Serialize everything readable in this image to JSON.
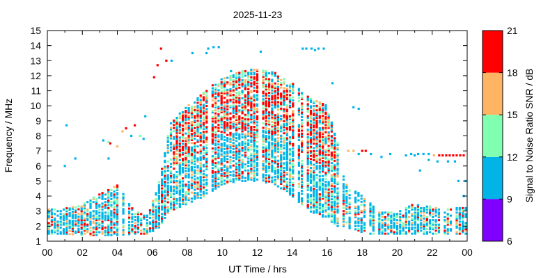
{
  "chart_data": {
    "type": "heatmap",
    "title": "2025-11-23",
    "xlabel": "UT Time / hrs",
    "ylabel": "Frequency / MHz",
    "colorbar_label": "Signal to Noise Ratio SNR / dB",
    "xlim": [
      0,
      24
    ],
    "ylim": [
      1,
      15
    ],
    "x_ticks": [
      "00",
      "02",
      "04",
      "06",
      "08",
      "10",
      "12",
      "14",
      "16",
      "18",
      "20",
      "22",
      "00"
    ],
    "y_ticks": [
      "1",
      "2",
      "3",
      "4",
      "5",
      "6",
      "7",
      "8",
      "9",
      "10",
      "11",
      "12",
      "13",
      "14",
      "15"
    ],
    "grid": false,
    "colorbar": {
      "range": [
        6,
        21
      ],
      "tick_labels": [
        "6",
        "9",
        "12",
        "15",
        "18",
        "21"
      ],
      "bands": [
        {
          "min": 6,
          "max": 9,
          "color": "#8000ff"
        },
        {
          "min": 9,
          "max": 12,
          "color": "#00b4e8"
        },
        {
          "min": 12,
          "max": 15,
          "color": "#80ffb0"
        },
        {
          "min": 15,
          "max": 18,
          "color": "#ffb464"
        },
        {
          "min": 18,
          "max": 21,
          "color": "#ff0000"
        }
      ]
    },
    "profile": [
      [
        0,
        1.5,
        3.2
      ],
      [
        1,
        1.5,
        3.2
      ],
      [
        2,
        1.4,
        3.4
      ],
      [
        3,
        1.4,
        4.2
      ],
      [
        4,
        1.4,
        4.8
      ],
      [
        5,
        1.5,
        3.0
      ],
      [
        5.8,
        1.5,
        2.8
      ],
      [
        6.5,
        2.0,
        5.5
      ],
      [
        7,
        3.0,
        8.8
      ],
      [
        8,
        3.5,
        10.0
      ],
      [
        9,
        4.0,
        11.0
      ],
      [
        10,
        4.8,
        11.8
      ],
      [
        11,
        5.0,
        12.3
      ],
      [
        12,
        5.0,
        12.5
      ],
      [
        13,
        4.8,
        12.2
      ],
      [
        14,
        4.0,
        11.5
      ],
      [
        15,
        3.0,
        10.5
      ],
      [
        16,
        2.5,
        10.0
      ],
      [
        16.6,
        2.0,
        7.5
      ],
      [
        17,
        2.0,
        5.0
      ],
      [
        18,
        1.5,
        4.0
      ],
      [
        19,
        1.5,
        3.0
      ],
      [
        20,
        1.5,
        3.0
      ],
      [
        21,
        1.5,
        3.5
      ],
      [
        22,
        1.5,
        3.3
      ],
      [
        24,
        1.5,
        3.3
      ]
    ],
    "scattered_points": [
      {
        "x": 1.0,
        "y": 6.0,
        "snr": 10
      },
      {
        "x": 1.1,
        "y": 8.7,
        "snr": 10
      },
      {
        "x": 1.6,
        "y": 6.5,
        "snr": 10
      },
      {
        "x": 3.2,
        "y": 7.7,
        "snr": 10
      },
      {
        "x": 3.5,
        "y": 7.6,
        "snr": 13
      },
      {
        "x": 3.6,
        "y": 7.5,
        "snr": 19
      },
      {
        "x": 3.5,
        "y": 6.5,
        "snr": 10
      },
      {
        "x": 4.0,
        "y": 7.3,
        "snr": 16
      },
      {
        "x": 4.3,
        "y": 8.3,
        "snr": 16
      },
      {
        "x": 4.5,
        "y": 8.5,
        "snr": 19
      },
      {
        "x": 4.8,
        "y": 8.0,
        "snr": 10
      },
      {
        "x": 5.0,
        "y": 8.7,
        "snr": 19
      },
      {
        "x": 5.3,
        "y": 8.0,
        "snr": 13
      },
      {
        "x": 5.5,
        "y": 7.8,
        "snr": 10
      },
      {
        "x": 5.6,
        "y": 9.3,
        "snr": 10
      },
      {
        "x": 6.1,
        "y": 11.9,
        "snr": 19
      },
      {
        "x": 6.3,
        "y": 12.7,
        "snr": 19
      },
      {
        "x": 6.5,
        "y": 13.8,
        "snr": 19
      },
      {
        "x": 6.8,
        "y": 13.0,
        "snr": 19
      },
      {
        "x": 7.1,
        "y": 13.0,
        "snr": 10
      },
      {
        "x": 8.3,
        "y": 13.5,
        "snr": 10
      },
      {
        "x": 9.1,
        "y": 13.5,
        "snr": 10
      },
      {
        "x": 9.2,
        "y": 13.8,
        "snr": 10
      },
      {
        "x": 9.5,
        "y": 13.9,
        "snr": 10
      },
      {
        "x": 9.8,
        "y": 13.9,
        "snr": 10
      },
      {
        "x": 10.5,
        "y": 12.3,
        "snr": 10
      },
      {
        "x": 12.2,
        "y": 13.6,
        "snr": 10
      },
      {
        "x": 14.6,
        "y": 13.8,
        "snr": 10
      },
      {
        "x": 14.8,
        "y": 13.8,
        "snr": 10
      },
      {
        "x": 15.1,
        "y": 13.8,
        "snr": 10
      },
      {
        "x": 15.3,
        "y": 13.7,
        "snr": 10
      },
      {
        "x": 15.5,
        "y": 13.8,
        "snr": 10
      },
      {
        "x": 15.8,
        "y": 13.8,
        "snr": 10
      },
      {
        "x": 16.3,
        "y": 11.5,
        "snr": 10
      },
      {
        "x": 17.5,
        "y": 9.9,
        "snr": 10
      },
      {
        "x": 17.8,
        "y": 9.8,
        "snr": 10
      },
      {
        "x": 18.0,
        "y": 7.0,
        "snr": 19
      },
      {
        "x": 18.2,
        "y": 7.0,
        "snr": 19
      },
      {
        "x": 17.2,
        "y": 7.0,
        "snr": 16
      },
      {
        "x": 17.5,
        "y": 7.0,
        "snr": 16
      },
      {
        "x": 17.8,
        "y": 6.8,
        "snr": 10
      },
      {
        "x": 18.5,
        "y": 6.8,
        "snr": 10
      },
      {
        "x": 19.1,
        "y": 6.6,
        "snr": 10
      },
      {
        "x": 19.6,
        "y": 6.8,
        "snr": 10
      },
      {
        "x": 20.5,
        "y": 6.7,
        "snr": 10
      },
      {
        "x": 20.8,
        "y": 6.8,
        "snr": 10
      },
      {
        "x": 21.0,
        "y": 6.7,
        "snr": 10
      },
      {
        "x": 21.2,
        "y": 6.8,
        "snr": 10
      },
      {
        "x": 21.5,
        "y": 6.8,
        "snr": 10
      },
      {
        "x": 21.8,
        "y": 6.8,
        "snr": 10
      },
      {
        "x": 21.3,
        "y": 5.7,
        "snr": 10
      },
      {
        "x": 21.8,
        "y": 6.4,
        "snr": 10
      },
      {
        "x": 22.1,
        "y": 6.7,
        "snr": 16
      },
      {
        "x": 22.3,
        "y": 6.3,
        "snr": 10
      },
      {
        "x": 22.4,
        "y": 6.7,
        "snr": 19
      },
      {
        "x": 22.6,
        "y": 6.7,
        "snr": 19
      },
      {
        "x": 22.8,
        "y": 6.7,
        "snr": 19
      },
      {
        "x": 22.9,
        "y": 6.3,
        "snr": 10
      },
      {
        "x": 23.0,
        "y": 6.7,
        "snr": 19
      },
      {
        "x": 23.2,
        "y": 6.7,
        "snr": 19
      },
      {
        "x": 23.3,
        "y": 6.3,
        "snr": 10
      },
      {
        "x": 23.4,
        "y": 6.7,
        "snr": 19
      },
      {
        "x": 23.6,
        "y": 6.7,
        "snr": 19
      },
      {
        "x": 23.8,
        "y": 6.7,
        "snr": 19
      },
      {
        "x": 23.9,
        "y": 5.0,
        "snr": 10
      },
      {
        "x": 23.8,
        "y": 4.0,
        "snr": 10
      },
      {
        "x": 23.5,
        "y": 5.0,
        "snr": 10
      }
    ]
  }
}
